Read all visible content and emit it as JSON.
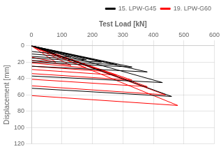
{
  "chart_data": {
    "type": "line",
    "xlabel": "Test Load [kN]",
    "ylabel": "Displacement [mm]",
    "xlim": [
      0,
      600
    ],
    "ylim": [
      120,
      0
    ],
    "xticks": [
      0,
      100,
      200,
      300,
      400,
      500,
      600
    ],
    "yticks": [
      0,
      20,
      40,
      60,
      80,
      100,
      120
    ],
    "grid": true,
    "legend": "upper right",
    "series": [
      {
        "name": "15. LPW-G45",
        "color": "black",
        "x": [
          0,
          80,
          2,
          null,
          0,
          130,
          2,
          null,
          0,
          180,
          2,
          null,
          0,
          230,
          2,
          null,
          0,
          280,
          2,
          null,
          0,
          330,
          2,
          null,
          0,
          380,
          2,
          null,
          0,
          430,
          2,
          null,
          0,
          460,
          2
        ],
        "values": [
          0,
          10,
          7,
          null,
          0,
          14,
          10,
          null,
          0,
          17,
          13,
          null,
          0,
          20,
          15,
          null,
          0,
          23,
          18,
          null,
          0,
          26,
          20,
          null,
          0,
          32,
          25,
          null,
          0,
          45,
          37,
          null,
          0,
          62,
          52
        ]
      },
      {
        "name": "19. LPW-G60",
        "color": "red",
        "x": [
          0,
          80,
          2,
          null,
          0,
          130,
          2,
          null,
          0,
          180,
          2,
          null,
          0,
          230,
          2,
          null,
          0,
          280,
          2,
          null,
          0,
          330,
          2,
          null,
          0,
          380,
          2,
          null,
          0,
          440,
          2,
          null,
          0,
          480,
          2
        ],
        "values": [
          0,
          20,
          14,
          null,
          0,
          24,
          18,
          null,
          0,
          27,
          21,
          null,
          0,
          31,
          25,
          null,
          0,
          36,
          29,
          null,
          0,
          42,
          34,
          null,
          0,
          50,
          41,
          null,
          0,
          60,
          49,
          null,
          0,
          73,
          61
        ]
      }
    ]
  }
}
